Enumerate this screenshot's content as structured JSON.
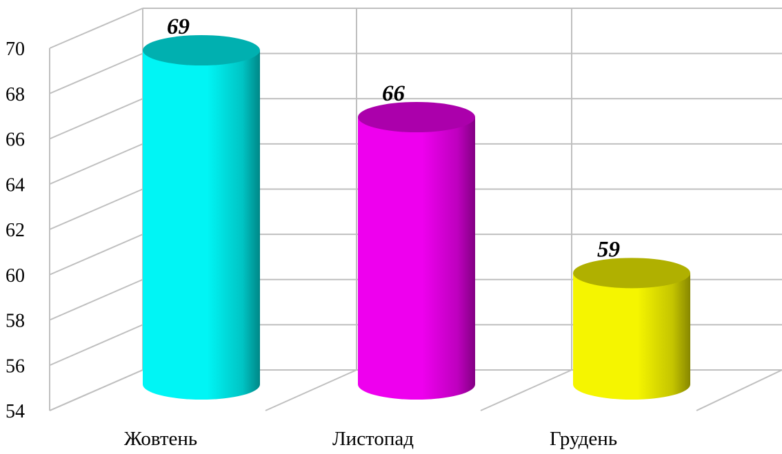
{
  "chart_data": {
    "type": "bar",
    "style": "3d-cylinder",
    "categories": [
      "Жовтень",
      "Листопад",
      "Грудень"
    ],
    "values": [
      69,
      66,
      59
    ],
    "data_labels": [
      "69",
      "66",
      "59"
    ],
    "colors": [
      "#00f5f5",
      "#ee00ee",
      "#f5f500"
    ],
    "ylim": [
      54,
      70
    ],
    "yticks": [
      "54",
      "56",
      "58",
      "60",
      "62",
      "64",
      "66",
      "68",
      "70"
    ],
    "grid": true,
    "legend": "none",
    "title": "",
    "xlabel": "",
    "ylabel": ""
  }
}
